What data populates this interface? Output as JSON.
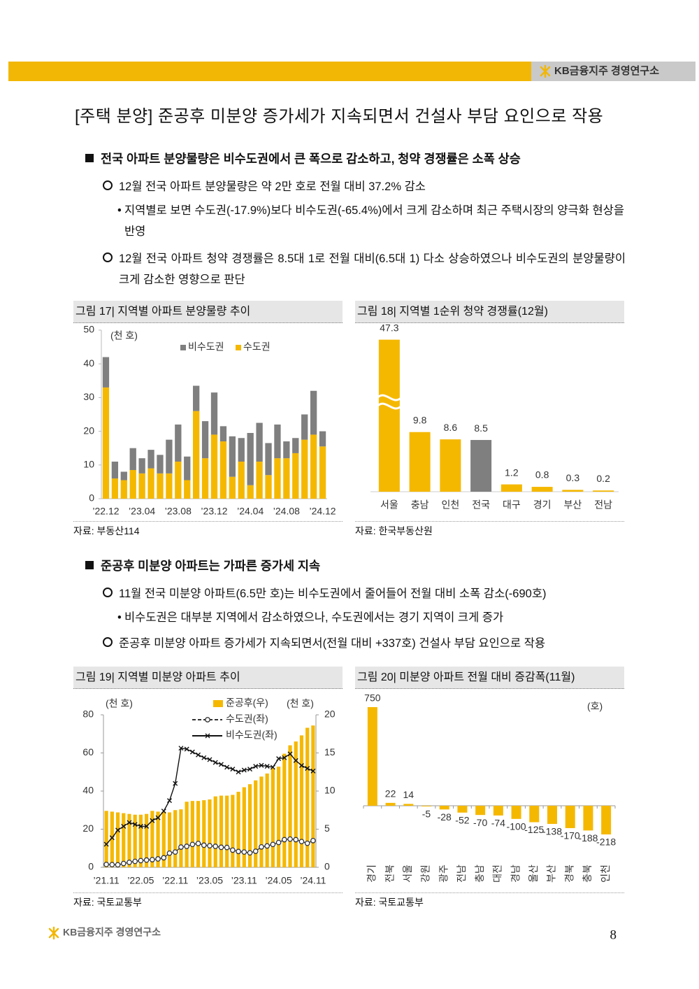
{
  "header": {
    "brand": "KB금융지주 경영연구소"
  },
  "title": "[주택 분양] 준공후 미분양 증가세가 지속되면서 건설사 부담 요인으로 작용",
  "sections": [
    {
      "heading": "전국 아파트 분양물량은 비수도권에서 큰 폭으로 감소하고, 청약 경쟁률은 소폭 상승",
      "items": [
        {
          "text": "12월 전국 아파트 분양물량은 약 2만 호로 전월 대비 37.2% 감소",
          "sub": [
            "지역별로 보면 수도권(-17.9%)보다 비수도권(-65.4%)에서 크게 감소하며 최근 주택시장의 양극화 현상을 반영"
          ]
        },
        {
          "text": "12월 전국 아파트 청약 경쟁률은 8.5대 1로 전월 대비(6.5대 1) 다소 상승하였으나 비수도권의 분양물량이 크게 감소한 영향으로 판단"
        }
      ]
    },
    {
      "heading": "준공후 미분양 아파트는 가파른 증가세 지속",
      "items": [
        {
          "text": "11월 전국 미분양 아파트(6.5만 호)는 비수도권에서 줄어들어 전월 대비 소폭 감소(-690호)",
          "sub": [
            "비수도권은 대부분 지역에서 감소하였으나, 수도권에서는 경기 지역이 크게 증가"
          ]
        },
        {
          "text": "준공후 미분양 아파트 증가세가 지속되면서(전월 대비 +337호) 건설사 부담 요인으로 작용"
        }
      ]
    }
  ],
  "figures": [
    {
      "caption": "그림 17| 지역별 아파트 분양물량 추이",
      "source": "자료: 부동산114"
    },
    {
      "caption": "그림 18| 지역별 1순위 청약 경쟁률(12월)",
      "source": "자료: 한국부동산원"
    },
    {
      "caption": "그림 19| 지역별 미분양 아파트 추이",
      "source": "자료: 국토교통부"
    },
    {
      "caption": "그림 20| 미분양 아파트 전월 대비 증감폭(11월)",
      "source": "자료: 국토교통부"
    }
  ],
  "chart_data": [
    {
      "type": "bar",
      "stacked": true,
      "unit": "(천 호)",
      "categories": [
        "’22.12",
        null,
        null,
        null,
        "’23.04",
        null,
        null,
        null,
        "’23.08",
        null,
        null,
        null,
        "’23.12",
        null,
        null,
        null,
        "’24.04",
        null,
        null,
        null,
        "’24.08",
        null,
        null,
        null,
        "’24.12"
      ],
      "series": [
        {
          "name": "비수도권",
          "color": "#7f7f7f",
          "values": [
            9,
            5,
            2.5,
            6.5,
            4.5,
            5.5,
            5.5,
            10,
            11,
            7,
            7.5,
            11,
            12.5,
            4.5,
            12,
            7,
            15.5,
            11.5,
            9.5,
            10,
            5,
            4.5,
            7.5,
            13,
            4.5
          ]
        },
        {
          "name": "수도권",
          "color": "#f5b800",
          "values": [
            33,
            6,
            5.5,
            8.5,
            7.5,
            9,
            7.5,
            7.5,
            11,
            5.5,
            26,
            12,
            19,
            17,
            6.5,
            11,
            4,
            11,
            7,
            12,
            12,
            13.5,
            17.5,
            19,
            15.5
          ]
        }
      ],
      "ylim": [
        0,
        50
      ],
      "yticks": [
        0,
        10,
        20,
        30,
        40,
        50
      ],
      "legend": "top"
    },
    {
      "type": "bar",
      "axis_break": true,
      "categories": [
        "서울",
        "충남",
        "인천",
        "전국",
        "대구",
        "경기",
        "부산",
        "전남"
      ],
      "values": [
        47.3,
        9.8,
        8.6,
        8.5,
        1.2,
        0.8,
        0.3,
        0.2
      ],
      "colors": [
        "#f5b800",
        "#f5b800",
        "#f5b800",
        "#7f7f7f",
        "#f5b800",
        "#f5b800",
        "#f5b800",
        "#f5b800"
      ]
    },
    {
      "type": "combo",
      "unit_left": "(천 호)",
      "unit_right": "(천 호)",
      "categories": [
        "’21.11",
        null,
        null,
        null,
        null,
        null,
        "’22.05",
        null,
        null,
        null,
        null,
        null,
        "’22.11",
        null,
        null,
        null,
        null,
        null,
        "’23.05",
        null,
        null,
        null,
        null,
        null,
        "’23.11",
        null,
        null,
        null,
        null,
        null,
        "’24.05",
        null,
        null,
        null,
        null,
        null,
        "’24.11"
      ],
      "series": [
        {
          "name": "준공후(우)",
          "type": "bar",
          "axis": "y2",
          "color": "#f5b800",
          "values": [
            7.4,
            7.3,
            7.2,
            7.1,
            7.0,
            6.9,
            6.9,
            7.0,
            7.4,
            7.3,
            7.3,
            7.2,
            7.5,
            7.6,
            8.6,
            8.7,
            8.7,
            8.8,
            8.9,
            9.3,
            9.4,
            9.4,
            9.5,
            9.9,
            10.5,
            10.9,
            11.4,
            11.9,
            12.3,
            13.0,
            13.2,
            14.9,
            16.0,
            16.5,
            17.3,
            18.3,
            18.6
          ]
        },
        {
          "name": "수도권(좌)",
          "type": "line",
          "marker": "circle",
          "dash": true,
          "color": "#333333",
          "values": [
            1.5,
            1.4,
            1.3,
            2.0,
            2.6,
            3.1,
            3.5,
            3.8,
            4.0,
            4.4,
            5.0,
            7.4,
            8.0,
            10.6,
            11.0,
            12.0,
            12.5,
            11.6,
            11.3,
            11.0,
            10.5,
            10.4,
            9.0,
            8.3,
            8.0,
            7.6,
            8.4,
            10.7,
            11.2,
            12.0,
            13.0,
            14.5,
            14.8,
            14.5,
            13.5,
            12.6,
            14.0
          ]
        },
        {
          "name": "비수도권(좌)",
          "type": "line",
          "marker": "x",
          "dash": false,
          "color": "#111111",
          "values": [
            12.1,
            15.5,
            19.5,
            21.5,
            23.5,
            22.5,
            21.5,
            21.5,
            24.5,
            26,
            29.5,
            35,
            44,
            62.5,
            62,
            60.5,
            59,
            57.5,
            56.5,
            55,
            54,
            52.5,
            51.5,
            50,
            51,
            51.5,
            53,
            53.5,
            53,
            52.5,
            57,
            57.5,
            59.5,
            56,
            53.4,
            51.9,
            50.5
          ]
        }
      ],
      "ylim": [
        0,
        80
      ],
      "yticks": [
        0,
        20,
        40,
        60,
        80
      ],
      "y2lim": [
        0,
        20
      ],
      "y2ticks": [
        0,
        5,
        10,
        15,
        20
      ],
      "legend": "top"
    },
    {
      "type": "bar",
      "unit": "(호)",
      "categories": [
        "경기",
        "전북",
        "서울",
        "강원",
        "광주",
        "전남",
        "충남",
        "대전",
        "경남",
        "울산",
        "부산",
        "경북",
        "충북",
        "인천"
      ],
      "values": [
        750,
        22,
        14,
        -5,
        -28,
        -52,
        -70,
        -74,
        -100,
        -125,
        -138,
        -170,
        -188,
        -218
      ],
      "color": "#f5b800"
    }
  ],
  "footer": {
    "brand": "KB금융지주 경영연구소",
    "page": "8"
  }
}
